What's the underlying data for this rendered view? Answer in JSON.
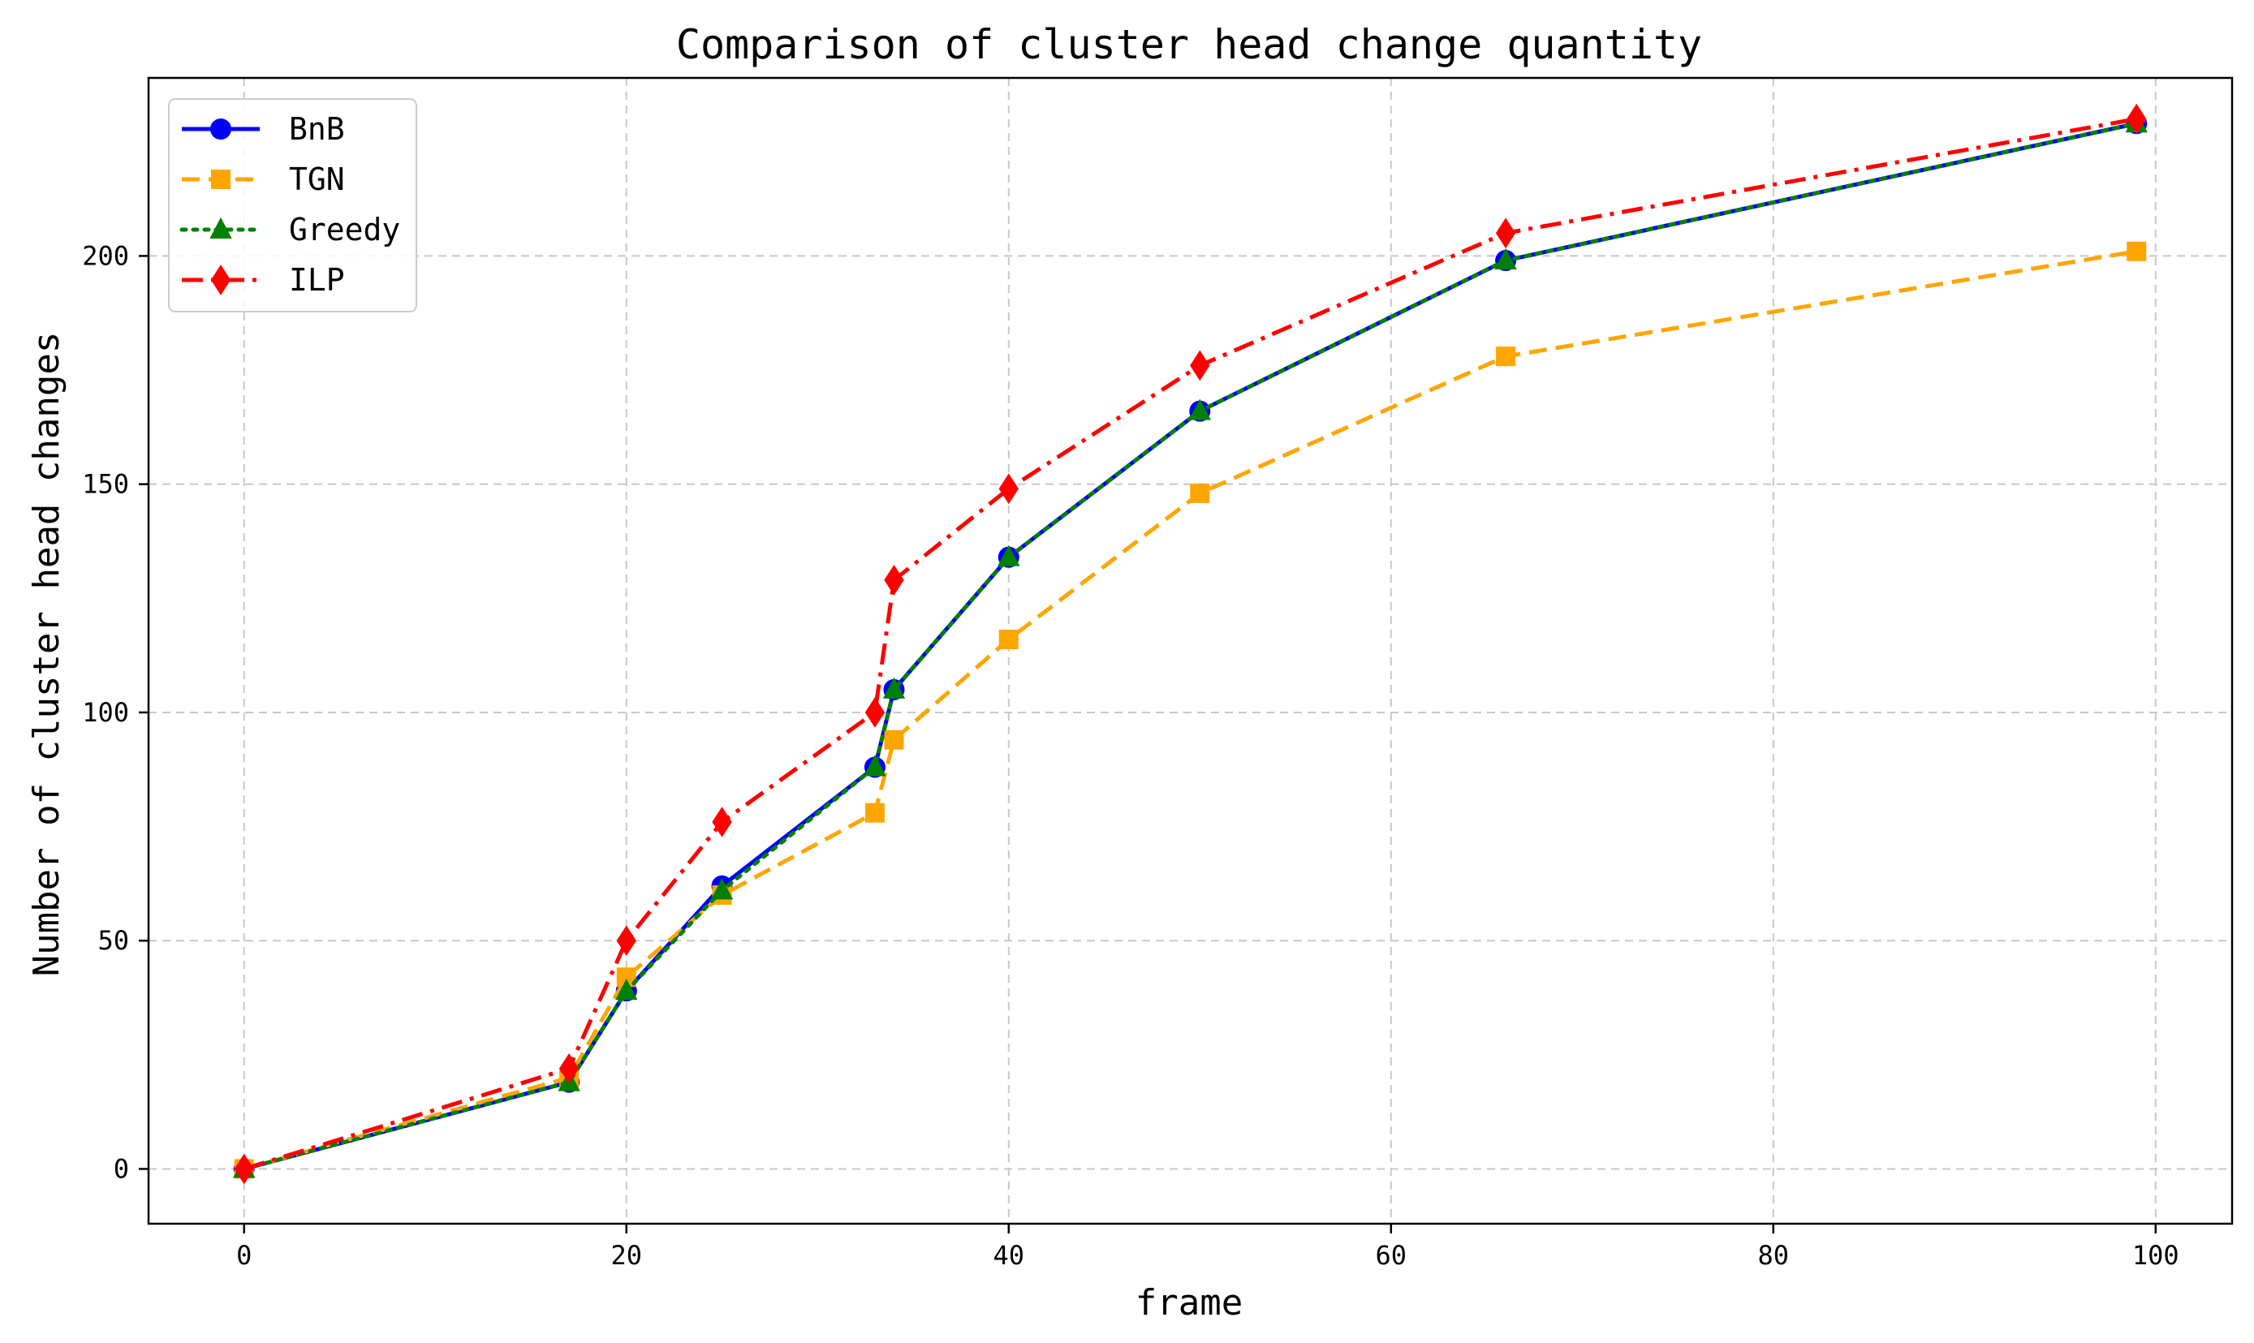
{
  "chart_data": {
    "type": "line",
    "title": "Comparison of cluster head change quantity",
    "xlabel": "frame",
    "ylabel": "Number of cluster head changes",
    "xlim": [
      -5,
      104
    ],
    "ylim": [
      -12,
      239
    ],
    "xticks": [
      0,
      20,
      40,
      60,
      80,
      100
    ],
    "yticks": [
      0,
      50,
      100,
      150,
      200
    ],
    "grid": true,
    "legend_position": "top-left",
    "x": [
      0,
      17,
      20,
      25,
      33,
      34,
      40,
      50,
      66,
      99
    ],
    "series": [
      {
        "name": "BnB",
        "color": "#0000ff",
        "linestyle": "solid",
        "marker": "circle",
        "values": [
          0,
          19,
          39,
          62,
          88,
          105,
          134,
          166,
          199,
          229
        ]
      },
      {
        "name": "TGN",
        "color": "#ffa500",
        "linestyle": "dashed",
        "marker": "square",
        "values": [
          0,
          20,
          42,
          60,
          78,
          94,
          116,
          148,
          178,
          201
        ]
      },
      {
        "name": "Greedy",
        "color": "#008000",
        "linestyle": "dotted",
        "marker": "triangle",
        "values": [
          0,
          19,
          39,
          61,
          88,
          105,
          134,
          166,
          199,
          229
        ]
      },
      {
        "name": "ILP",
        "color": "#ff0000",
        "linestyle": "dashdot",
        "marker": "diamond",
        "values": [
          0,
          22,
          50,
          76,
          100,
          129,
          149,
          176,
          205,
          230
        ]
      }
    ]
  }
}
